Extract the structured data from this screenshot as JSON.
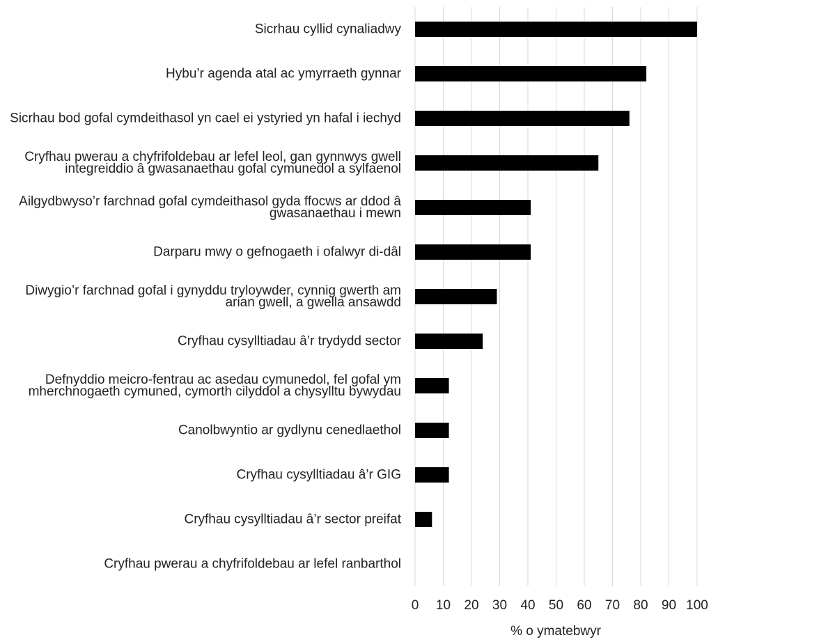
{
  "chart_data": {
    "type": "barh",
    "categories": [
      "Sicrhau cyllid cynaliadwy",
      "Hybu’r agenda atal ac ymyrraeth gynnar",
      "Sicrhau bod gofal cymdeithasol yn cael ei ystyried yn hafal i iechyd",
      "Cryfhau pwerau a chyfrifoldebau ar lefel leol, gan gynnwys gwell integreiddio â gwasanaethau gofal cymunedol a sylfaenol",
      "Ailgydbwyso’r farchnad gofal cymdeithasol gyda ffocws ar ddod â gwasanaethau i mewn",
      "Darparu mwy o gefnogaeth i ofalwyr di-dâl",
      "Diwygio’r farchnad gofal i gynyddu tryloywder, cynnig gwerth am arian gwell, a gwella ansawdd",
      "Cryfhau cysylltiadau â’r trydydd sector",
      "Defnyddio meicro-fentrau ac asedau cymunedol, fel gofal ym mherchnogaeth cymuned, cymorth cilyddol a chysylltu bywydau",
      "Canolbwyntio ar gydlynu cenedlaethol",
      "Cryfhau cysylltiadau â’r GIG",
      "Cryfhau cysylltiadau â’r sector preifat",
      "Cryfhau pwerau a chyfrifoldebau ar lefel ranbarthol"
    ],
    "values": [
      100,
      82,
      76,
      65,
      41,
      41,
      29,
      24,
      12,
      12,
      12,
      6,
      0
    ],
    "color": "#000000",
    "xlabel": "% o ymatebwyr",
    "xlim": [
      0,
      100
    ],
    "xticks": [
      0,
      10,
      20,
      30,
      40,
      50,
      60,
      70,
      80,
      90,
      100
    ],
    "grid": true
  }
}
